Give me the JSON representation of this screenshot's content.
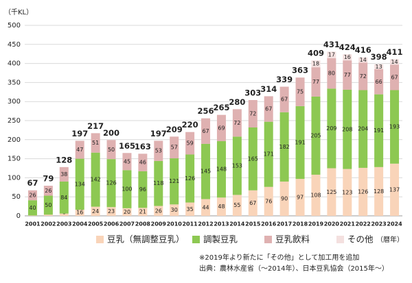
{
  "chart_data": {
    "type": "stacked-bar",
    "unit": "（千KL）",
    "x_label": "（暦年）",
    "categories": [
      "2001",
      "2002",
      "2003",
      "2004",
      "2005",
      "2006",
      "2007",
      "2008",
      "2009",
      "2010",
      "2011",
      "2012",
      "2013",
      "2014",
      "2015",
      "2016",
      "2017",
      "2018",
      "2019",
      "2020",
      "2021",
      "2022",
      "2023",
      "2024"
    ],
    "series": [
      {
        "name": "豆乳（無調整豆乳）",
        "color": "#f9d4b9",
        "values": [
          1,
          3,
          6,
          16,
          24,
          23,
          20,
          21,
          26,
          30,
          35,
          44,
          48,
          55,
          67,
          76,
          90,
          97,
          108,
          125,
          123,
          126,
          128,
          137
        ]
      },
      {
        "name": "調製豆乳",
        "color": "#8dc852",
        "values": [
          40,
          50,
          84,
          134,
          142,
          126,
          100,
          96,
          118,
          121,
          126,
          145,
          148,
          153,
          165,
          171,
          182,
          191,
          205,
          209,
          208,
          204,
          191,
          193
        ]
      },
      {
        "name": "豆乳飲料",
        "color": "#dfb1b1",
        "values": [
          26,
          26,
          38,
          47,
          51,
          50,
          45,
          46,
          53,
          57,
          59,
          67,
          69,
          72,
          72,
          67,
          67,
          75,
          77,
          80,
          77,
          72,
          66,
          67
        ]
      },
      {
        "name": "その他",
        "color": "#f4e0df",
        "values": [
          null,
          null,
          null,
          null,
          null,
          null,
          null,
          null,
          null,
          null,
          null,
          null,
          null,
          null,
          null,
          null,
          null,
          null,
          18,
          17,
          16,
          14,
          13,
          14
        ]
      }
    ],
    "totals": [
      67,
      79,
      128,
      197,
      217,
      200,
      165,
      163,
      197,
      209,
      220,
      256,
      265,
      280,
      303,
      314,
      339,
      363,
      409,
      431,
      424,
      416,
      398,
      411
    ],
    "ylim": [
      0,
      500
    ],
    "yticks": [
      0,
      50,
      100,
      150,
      200,
      250,
      300,
      350,
      400,
      450,
      500
    ],
    "grid": true,
    "notes": [
      "※2019年より新たに「その他」として加工用を追加",
      "出典：農林水産省（～2014年）、日本豆乳協会（2015年～）"
    ]
  }
}
